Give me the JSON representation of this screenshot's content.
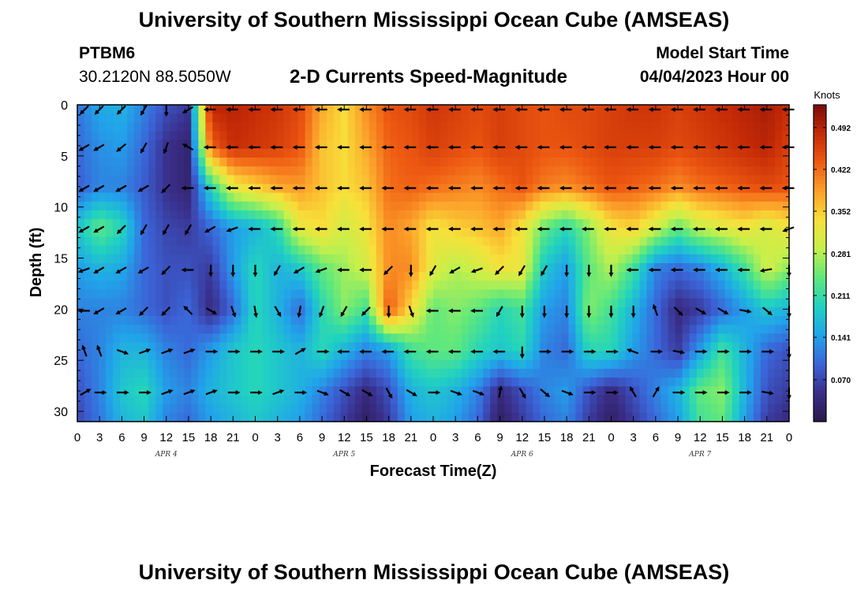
{
  "page": {
    "title": "University of Southern Mississippi Ocean Cube (AMSEAS)",
    "bottom_title": "University of Southern Mississippi Ocean Cube (AMSEAS)",
    "station_id": "PTBM6",
    "station_coords": "30.2120N  88.5050W",
    "plot_title": "2-D Currents Speed-Magnitude",
    "model_start_label": "Model Start Time",
    "model_start_value": "04/04/2023 Hour 00"
  },
  "chart_data": {
    "type": "heatmap",
    "title": "2-D Currents Speed-Magnitude",
    "xlabel": "Forecast Time(Z)",
    "ylabel": "Depth (ft)",
    "x_ticks": [
      "0",
      "3",
      "6",
      "9",
      "12",
      "15",
      "18",
      "21",
      "0",
      "3",
      "6",
      "9",
      "12",
      "15",
      "18",
      "21",
      "0",
      "3",
      "6",
      "9",
      "12",
      "15",
      "18",
      "21",
      "0",
      "3",
      "6",
      "9",
      "12",
      "15",
      "18",
      "21",
      "0"
    ],
    "x_range_hours": [
      0,
      96
    ],
    "day_labels": [
      {
        "label": "APR 4",
        "hour": 12
      },
      {
        "label": "APR 5",
        "hour": 36
      },
      {
        "label": "APR 6",
        "hour": 60
      },
      {
        "label": "APR 7",
        "hour": 84
      }
    ],
    "y_ticks": [
      "0",
      "5",
      "10",
      "15",
      "20",
      "25",
      "30"
    ],
    "y_range_ft": [
      0,
      31
    ],
    "colorbar": {
      "label": "Knots",
      "tick_labels": [
        "0.492",
        "0.422",
        "0.352",
        "0.281",
        "0.211",
        "0.141",
        "0.070"
      ],
      "tick_values": [
        0.492,
        0.422,
        0.352,
        0.281,
        0.211,
        0.141,
        0.07
      ],
      "range": [
        0.0,
        0.53
      ],
      "colormap_stops": [
        "#2a1848",
        "#3a2e8a",
        "#3b64d8",
        "#21a4ea",
        "#21d2c0",
        "#5fe87c",
        "#c6f04a",
        "#f8e03a",
        "#fca02a",
        "#ee5a12",
        "#c42a06",
        "#7a0c0a"
      ]
    },
    "depths_ft": [
      0,
      4,
      8,
      12,
      16,
      20,
      24,
      28,
      31
    ],
    "times_hours": [
      0,
      3,
      6,
      9,
      12,
      15,
      18,
      21,
      24,
      27,
      30,
      33,
      36,
      39,
      42,
      45,
      48,
      51,
      54,
      57,
      60,
      63,
      66,
      69,
      72,
      75,
      78,
      81,
      84,
      87,
      90,
      93,
      96
    ],
    "speed_knots": [
      [
        0.11,
        0.15,
        0.16,
        0.12,
        0.08,
        0.06,
        0.49,
        0.49,
        0.48,
        0.47,
        0.45,
        0.38,
        0.34,
        0.4,
        0.44,
        0.45,
        0.47,
        0.46,
        0.45,
        0.46,
        0.45,
        0.44,
        0.45,
        0.45,
        0.46,
        0.47,
        0.47,
        0.46,
        0.47,
        0.48,
        0.49,
        0.5,
        0.48
      ],
      [
        0.1,
        0.13,
        0.14,
        0.1,
        0.05,
        0.03,
        0.43,
        0.48,
        0.47,
        0.46,
        0.44,
        0.36,
        0.34,
        0.38,
        0.43,
        0.44,
        0.46,
        0.45,
        0.44,
        0.46,
        0.45,
        0.44,
        0.44,
        0.45,
        0.46,
        0.46,
        0.46,
        0.45,
        0.46,
        0.47,
        0.48,
        0.49,
        0.46
      ],
      [
        0.09,
        0.12,
        0.12,
        0.09,
        0.05,
        0.03,
        0.2,
        0.32,
        0.35,
        0.38,
        0.39,
        0.36,
        0.34,
        0.36,
        0.42,
        0.43,
        0.42,
        0.41,
        0.4,
        0.42,
        0.44,
        0.41,
        0.4,
        0.42,
        0.44,
        0.43,
        0.42,
        0.4,
        0.42,
        0.43,
        0.44,
        0.45,
        0.44
      ],
      [
        0.18,
        0.24,
        0.2,
        0.1,
        0.07,
        0.06,
        0.1,
        0.14,
        0.16,
        0.2,
        0.32,
        0.34,
        0.3,
        0.33,
        0.4,
        0.38,
        0.33,
        0.35,
        0.36,
        0.38,
        0.33,
        0.24,
        0.2,
        0.26,
        0.33,
        0.35,
        0.3,
        0.24,
        0.29,
        0.31,
        0.33,
        0.3,
        0.33
      ],
      [
        0.14,
        0.16,
        0.15,
        0.1,
        0.08,
        0.08,
        0.06,
        0.14,
        0.2,
        0.16,
        0.18,
        0.24,
        0.27,
        0.3,
        0.4,
        0.4,
        0.31,
        0.28,
        0.3,
        0.33,
        0.32,
        0.18,
        0.14,
        0.24,
        0.28,
        0.22,
        0.12,
        0.1,
        0.12,
        0.16,
        0.22,
        0.3,
        0.26
      ],
      [
        0.12,
        0.12,
        0.12,
        0.1,
        0.08,
        0.1,
        0.04,
        0.1,
        0.2,
        0.16,
        0.1,
        0.2,
        0.26,
        0.22,
        0.44,
        0.34,
        0.24,
        0.26,
        0.24,
        0.2,
        0.22,
        0.14,
        0.12,
        0.26,
        0.22,
        0.16,
        0.1,
        0.04,
        0.06,
        0.1,
        0.14,
        0.18,
        0.16
      ],
      [
        0.1,
        0.12,
        0.16,
        0.16,
        0.12,
        0.1,
        0.14,
        0.18,
        0.2,
        0.18,
        0.16,
        0.2,
        0.16,
        0.12,
        0.14,
        0.22,
        0.24,
        0.24,
        0.2,
        0.18,
        0.2,
        0.12,
        0.1,
        0.2,
        0.2,
        0.14,
        0.1,
        0.06,
        0.14,
        0.22,
        0.16,
        0.1,
        0.08
      ],
      [
        0.08,
        0.12,
        0.18,
        0.2,
        0.14,
        0.12,
        0.16,
        0.18,
        0.2,
        0.18,
        0.16,
        0.12,
        0.08,
        0.04,
        0.08,
        0.16,
        0.18,
        0.16,
        0.12,
        0.04,
        0.08,
        0.12,
        0.14,
        0.08,
        0.04,
        0.08,
        0.12,
        0.16,
        0.24,
        0.26,
        0.16,
        0.08,
        0.06
      ],
      [
        0.07,
        0.11,
        0.16,
        0.18,
        0.12,
        0.1,
        0.14,
        0.16,
        0.18,
        0.16,
        0.14,
        0.1,
        0.06,
        0.02,
        0.06,
        0.14,
        0.16,
        0.14,
        0.1,
        0.02,
        0.06,
        0.1,
        0.12,
        0.06,
        0.02,
        0.06,
        0.1,
        0.14,
        0.22,
        0.24,
        0.14,
        0.06,
        0.04
      ]
    ],
    "arrow_rows_depth_ft": [
      0,
      4,
      8,
      12,
      16,
      20,
      24,
      28
    ],
    "arrow_times_hours": [
      1,
      3,
      6,
      9,
      12,
      15,
      18,
      21,
      24,
      27,
      30,
      33,
      36,
      39,
      42,
      45,
      48,
      51,
      54,
      57,
      60,
      63,
      66,
      69,
      72,
      75,
      78,
      81,
      84,
      87,
      90,
      93,
      96
    ],
    "arrow_direction_deg_note": "screen angle, 0=east, 90=south",
    "arrow_directions_deg": [
      [
        135,
        135,
        135,
        120,
        90,
        150,
        180,
        180,
        180,
        180,
        180,
        180,
        180,
        180,
        180,
        180,
        180,
        180,
        180,
        180,
        180,
        180,
        180,
        180,
        180,
        180,
        180,
        180,
        180,
        180,
        180,
        180,
        180
      ],
      [
        150,
        150,
        140,
        120,
        110,
        210,
        180,
        180,
        180,
        180,
        180,
        180,
        180,
        180,
        180,
        180,
        180,
        180,
        180,
        180,
        180,
        180,
        180,
        180,
        180,
        180,
        180,
        180,
        180,
        180,
        180,
        180,
        180
      ],
      [
        150,
        150,
        150,
        150,
        135,
        180,
        180,
        180,
        180,
        180,
        180,
        180,
        180,
        180,
        180,
        180,
        180,
        180,
        180,
        180,
        180,
        180,
        180,
        180,
        180,
        180,
        180,
        180,
        180,
        180,
        180,
        180,
        180
      ],
      [
        150,
        150,
        135,
        120,
        120,
        120,
        150,
        160,
        180,
        180,
        180,
        180,
        180,
        180,
        180,
        180,
        180,
        180,
        180,
        180,
        180,
        180,
        180,
        180,
        180,
        180,
        180,
        180,
        180,
        180,
        180,
        180,
        160
      ],
      [
        160,
        150,
        150,
        150,
        135,
        180,
        90,
        90,
        90,
        120,
        150,
        160,
        180,
        180,
        135,
        90,
        120,
        150,
        160,
        135,
        120,
        120,
        90,
        90,
        90,
        180,
        180,
        180,
        180,
        180,
        180,
        170,
        90
      ],
      [
        180,
        150,
        150,
        135,
        135,
        225,
        30,
        70,
        80,
        60,
        100,
        110,
        120,
        135,
        90,
        70,
        180,
        180,
        180,
        120,
        90,
        90,
        90,
        90,
        90,
        90,
        250,
        45,
        30,
        30,
        10,
        40,
        90
      ],
      [
        250,
        250,
        20,
        340,
        340,
        340,
        0,
        0,
        0,
        0,
        330,
        0,
        180,
        180,
        180,
        180,
        180,
        180,
        180,
        180,
        90,
        0,
        0,
        0,
        0,
        200,
        0,
        10,
        0,
        0,
        0,
        0,
        90
      ],
      [
        330,
        0,
        0,
        0,
        340,
        340,
        340,
        0,
        0,
        340,
        0,
        20,
        30,
        30,
        60,
        30,
        0,
        20,
        20,
        280,
        60,
        40,
        20,
        0,
        0,
        240,
        300,
        0,
        0,
        0,
        0,
        10,
        90
      ]
    ]
  }
}
